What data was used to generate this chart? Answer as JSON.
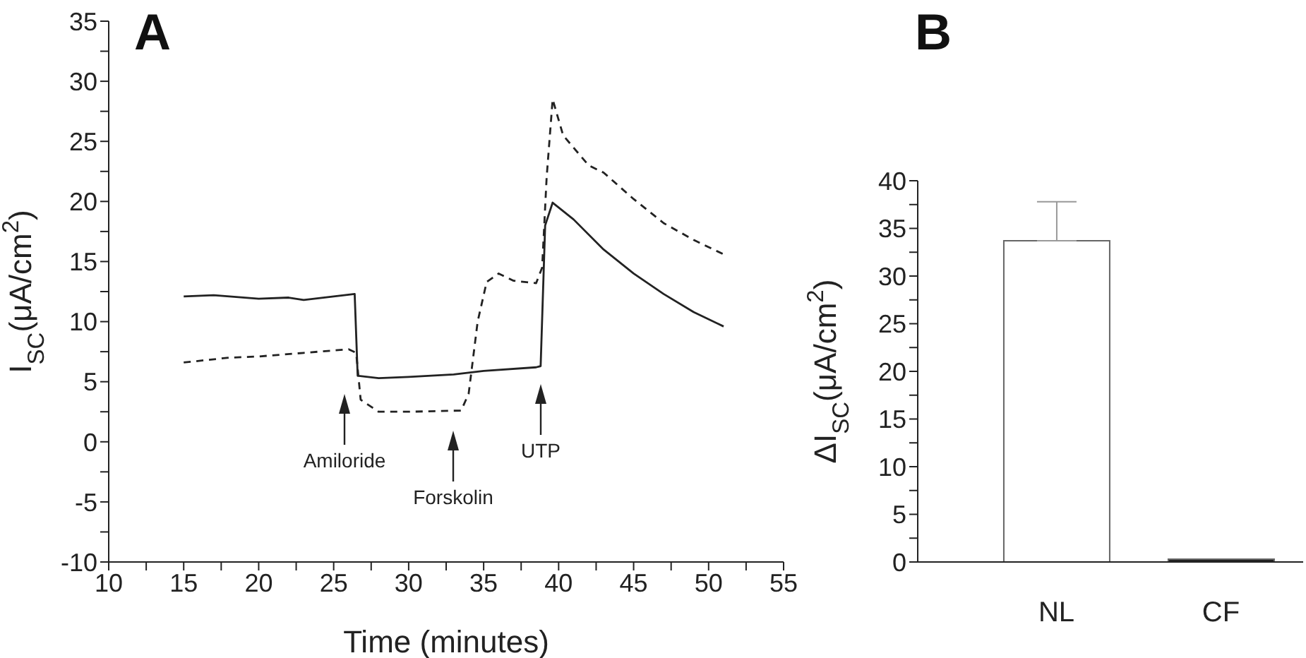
{
  "chart_data": [
    {
      "type": "line",
      "title": "A",
      "xlabel": "Time (minutes)",
      "ylabel": "I$_{SC}$(μA/cm$^{2}$)",
      "xlim": [
        10,
        55
      ],
      "xticks": [
        10,
        {
          "value": 12.5,
          "label": null
        },
        15,
        {
          "value": 17.5,
          "label": null
        },
        20,
        {
          "value": 22.5,
          "label": null
        },
        25,
        {
          "value": 27.5,
          "label": null
        },
        30,
        {
          "value": 32.5,
          "label": null
        },
        35,
        {
          "value": 37.5,
          "label": null
        },
        40,
        {
          "value": 42.5,
          "label": null
        },
        45,
        {
          "value": 47.5,
          "label": null
        },
        50,
        {
          "value": 52.5,
          "label": null
        },
        55
      ],
      "ylim": [
        -10,
        35
      ],
      "yticks": [
        -10,
        {
          "value": -7.5,
          "label": null
        },
        -5,
        {
          "value": -2.5,
          "label": null
        },
        0,
        {
          "value": 2.5,
          "label": null
        },
        5,
        {
          "value": 7.5,
          "label": null
        },
        10,
        {
          "value": 12.5,
          "label": null
        },
        15,
        {
          "value": 17.5,
          "label": null
        },
        20,
        {
          "value": 22.5,
          "label": null
        },
        25,
        {
          "value": 27.5,
          "label": null
        },
        30,
        {
          "value": 32.5,
          "label": null
        },
        35
      ],
      "series": [
        {
          "color": "#222222",
          "line_style": "solid",
          "x": [
            15,
            17,
            20,
            22,
            23,
            25,
            26.4,
            26.6,
            28,
            30,
            33,
            35,
            38.5,
            38.8,
            39.1,
            39.6,
            41,
            43,
            45,
            47,
            49,
            51
          ],
          "values": [
            12.1,
            12.2,
            11.9,
            12,
            11.8,
            12.1,
            12.3,
            5.5,
            5.3,
            5.4,
            5.6,
            5.9,
            6.2,
            6.3,
            18,
            19.9,
            18.5,
            16,
            14,
            12.3,
            10.8,
            9.6
          ]
        },
        {
          "color": "#222222",
          "line_style": "dashed",
          "x": [
            15,
            18,
            20,
            23,
            26,
            26.5,
            26.8,
            28,
            30,
            33.5,
            34,
            34.6,
            35.2,
            36,
            37,
            38.5,
            38.9,
            39.2,
            39.6,
            40.3,
            42,
            43,
            45,
            47,
            49,
            51
          ],
          "values": [
            6.6,
            7,
            7.1,
            7.4,
            7.7,
            7.4,
            3.5,
            2.5,
            2.5,
            2.6,
            4,
            10,
            13.3,
            14,
            13.4,
            13.2,
            14.5,
            22,
            28.5,
            25.5,
            23,
            22.4,
            20.2,
            18.2,
            16.8,
            15.6
          ]
        }
      ],
      "annotations": [
        "Amiloride",
        "Forskolin",
        "UTP"
      ]
    },
    {
      "type": "bar",
      "title": "B",
      "ylabel": "ΔI$_{SC}$(μA/cm$^{2}$)",
      "categories": [
        "NL",
        "CF"
      ],
      "values": [
        33.7,
        0.3
      ],
      "colors": [
        "#ffffff",
        "#222222"
      ],
      "errors": [
        [
          33.7,
          37.8
        ],
        null
      ],
      "ylim": [
        0,
        40
      ],
      "yticks": [
        0,
        {
          "value": 2.5,
          "label": null
        },
        5,
        {
          "value": 7.5,
          "label": null
        },
        10,
        {
          "value": 12.5,
          "label": null
        },
        15,
        {
          "value": 17.5,
          "label": null
        },
        20,
        {
          "value": 22.5,
          "label": null
        },
        25,
        {
          "value": 27.5,
          "label": null
        },
        30,
        {
          "value": 32.5,
          "label": null
        },
        35,
        {
          "value": 37.5,
          "label": null
        },
        40
      ]
    }
  ]
}
